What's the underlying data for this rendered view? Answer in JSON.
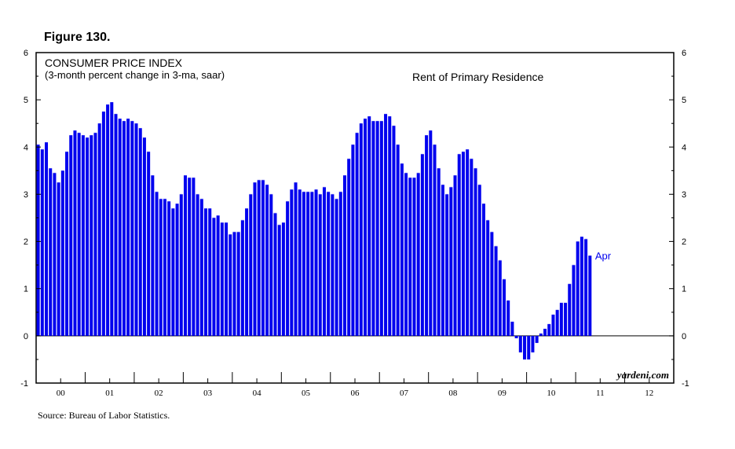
{
  "figure": {
    "title": "Figure 130.",
    "source": "Source: Bureau of Labor Statistics."
  },
  "chart_data": {
    "type": "bar",
    "title": "CONSUMER PRICE INDEX",
    "subtitle": "(3-month percent change in 3-ma, saar)",
    "series_label": "Rent of Primary Residence",
    "end_label": "Apr",
    "watermark": "yardeni.com",
    "ylim": [
      -1,
      6
    ],
    "yticks": [
      -1,
      0,
      1,
      2,
      3,
      4,
      5,
      6
    ],
    "x_start": "2000-01",
    "x_end": "2012-12",
    "year_labels": [
      "00",
      "01",
      "02",
      "03",
      "04",
      "05",
      "06",
      "07",
      "08",
      "09",
      "10",
      "11",
      "12"
    ],
    "colors": {
      "bar": "#0000ee",
      "label": "#0000ee",
      "axis": "#000000"
    },
    "values": [
      4.05,
      3.95,
      4.1,
      3.55,
      3.45,
      3.25,
      3.5,
      3.9,
      4.25,
      4.35,
      4.3,
      4.25,
      4.2,
      4.25,
      4.3,
      4.5,
      4.75,
      4.9,
      4.95,
      4.7,
      4.6,
      4.55,
      4.6,
      4.55,
      4.5,
      4.4,
      4.2,
      3.9,
      3.4,
      3.05,
      2.9,
      2.9,
      2.85,
      2.7,
      2.8,
      3.0,
      3.4,
      3.35,
      3.35,
      3.0,
      2.9,
      2.7,
      2.7,
      2.5,
      2.55,
      2.4,
      2.4,
      2.15,
      2.2,
      2.2,
      2.45,
      2.7,
      3.0,
      3.25,
      3.3,
      3.3,
      3.2,
      3.0,
      2.6,
      2.35,
      2.4,
      2.85,
      3.1,
      3.25,
      3.1,
      3.05,
      3.05,
      3.05,
      3.1,
      3.0,
      3.15,
      3.05,
      3.0,
      2.9,
      3.05,
      3.4,
      3.75,
      4.05,
      4.3,
      4.5,
      4.6,
      4.65,
      4.55,
      4.55,
      4.55,
      4.7,
      4.65,
      4.45,
      4.05,
      3.65,
      3.45,
      3.35,
      3.35,
      3.45,
      3.85,
      4.25,
      4.35,
      4.05,
      3.55,
      3.2,
      3.0,
      3.15,
      3.4,
      3.85,
      3.9,
      3.95,
      3.75,
      3.55,
      3.2,
      2.8,
      2.45,
      2.2,
      1.9,
      1.6,
      1.2,
      0.75,
      0.3,
      -0.05,
      -0.35,
      -0.5,
      -0.5,
      -0.35,
      -0.15,
      0.05,
      0.15,
      0.25,
      0.45,
      0.55,
      0.7,
      0.7,
      1.1,
      1.5,
      2.0,
      2.1,
      2.05,
      1.7
    ]
  }
}
